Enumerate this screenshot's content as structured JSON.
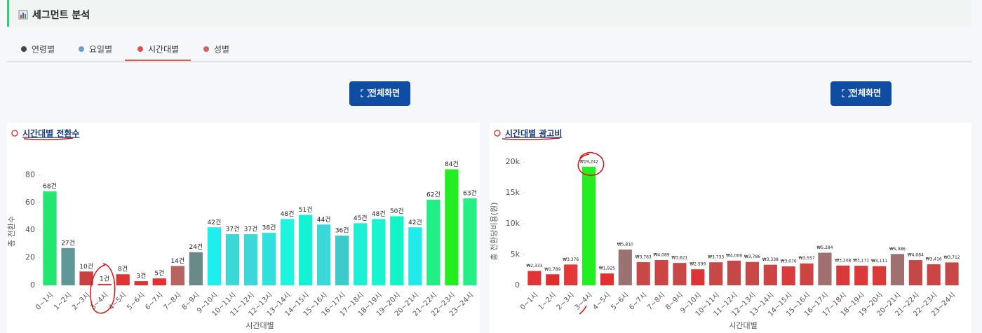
{
  "header": {
    "title": "세그먼트 분석"
  },
  "tabs": [
    "연령별",
    "요일별",
    "시간대별",
    "성별"
  ],
  "active_tab": 2,
  "buttons": [
    "전체화면",
    "전체화면"
  ],
  "chart_data": [
    {
      "type": "bar",
      "title": "시간대별 전환수",
      "x_label": "시간대별",
      "y_label": "총 전환수",
      "categories": [
        "0~1시",
        "1~2시",
        "2~3시",
        "3~4시",
        "4~5시",
        "5~6시",
        "6~7시",
        "7~8시",
        "8~9시",
        "9~10시",
        "10~11시",
        "11~12시",
        "12~13시",
        "13~14시",
        "14~15시",
        "15~16시",
        "16~17시",
        "17~18시",
        "18~19시",
        "19~20시",
        "20~21시",
        "21~22시",
        "22~23시",
        "23~24시"
      ],
      "values": [
        68,
        27,
        10,
        1,
        8,
        3,
        5,
        14,
        24,
        42,
        37,
        37,
        38,
        48,
        51,
        44,
        36,
        45,
        48,
        50,
        42,
        62,
        84,
        63
      ],
      "value_labels": [
        "68건",
        "27건",
        "10건",
        "1건",
        "8건",
        "3건",
        "5건",
        "14건",
        "24건",
        "42건",
        "37건",
        "37건",
        "38건",
        "48건",
        "51건",
        "44건",
        "36건",
        "45건",
        "48건",
        "50건",
        "42건",
        "62건",
        "84건",
        "63건"
      ],
      "colors": [
        "#22e66e",
        "#5f9896",
        "#c84040",
        "#e23232",
        "#e03333",
        "#e23030",
        "#e43030",
        "#b86262",
        "#6a8a88",
        "#1eeeee",
        "#3cd8d8",
        "#3cd8d8",
        "#30e0dc",
        "#1ef4e0",
        "#14f2d4",
        "#3cd8d8",
        "#3ccaca",
        "#1ef0d4",
        "#18f4d0",
        "#12f4c8",
        "#22eaea",
        "#22ee86",
        "#22ee22",
        "#24ee84"
      ],
      "ylim": [
        0,
        100
      ],
      "yticks": [
        0,
        20,
        40,
        60,
        80
      ],
      "grid": false
    },
    {
      "type": "bar",
      "title": "시간대별 광고비",
      "x_label": "시간대별",
      "y_label": "총 전환당비용(원)",
      "categories": [
        "0~1시",
        "1~2시",
        "2~3시",
        "3~4시",
        "4~5시",
        "5~6시",
        "6~7시",
        "7~8시",
        "8~9시",
        "9~10시",
        "10~11시",
        "11~12시",
        "12~13시",
        "13~14시",
        "14~15시",
        "15~16시",
        "16~17시",
        "17~18시",
        "18~19시",
        "19~20시",
        "20~21시",
        "21~22시",
        "22~23시",
        "23~24시"
      ],
      "values": [
        2333,
        1789,
        3376,
        19242,
        1925,
        5810,
        3763,
        4089,
        3621,
        2599,
        3733,
        4006,
        3786,
        3338,
        3076,
        3557,
        5284,
        3208,
        3171,
        3111,
        5086,
        4084,
        3416,
        3712
      ],
      "value_labels": [
        "₩2,333",
        "₩1,789",
        "₩3,376",
        "₩19,242",
        "₩1,925",
        "₩5,810",
        "₩3,763",
        "₩4,089",
        "₩3,621",
        "₩2,599",
        "₩3,733",
        "₩4,006",
        "₩3,786",
        "₩3,338",
        "₩3,076",
        "₩3,557",
        "₩5,284",
        "₩3,208",
        "₩3,171",
        "₩3,111",
        "₩5,086",
        "₩4,084",
        "₩3,416",
        "₩3,712"
      ],
      "colors": [
        "#e23434",
        "#e02c2c",
        "#e23838",
        "#22ee22",
        "#e23030",
        "#9a7272",
        "#c84848",
        "#cc4444",
        "#c84848",
        "#e03434",
        "#c84848",
        "#c44848",
        "#c84848",
        "#cc4444",
        "#d83c3c",
        "#cc4444",
        "#a07070",
        "#d83a3a",
        "#da3a3a",
        "#da3a3a",
        "#a07070",
        "#c44848",
        "#cc4444",
        "#c84848"
      ],
      "ylim": [
        0,
        22400
      ],
      "yticks": [
        0,
        {
          "value": 5000,
          "label": "5k"
        },
        {
          "value": 10000,
          "label": "10k"
        },
        {
          "value": 15000,
          "label": "15k"
        },
        {
          "value": 20000,
          "label": "20k"
        }
      ],
      "grid": false
    }
  ]
}
